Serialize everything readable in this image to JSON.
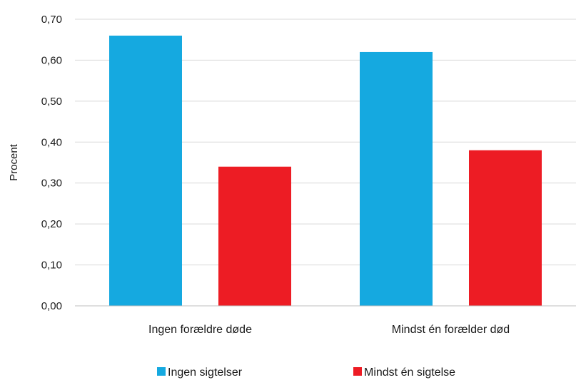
{
  "chart_data": {
    "type": "bar",
    "categories": [
      "Ingen forældre døde",
      "Mindst én forælder død"
    ],
    "series": [
      {
        "name": "Ingen sigtelser",
        "values": [
          0.66,
          0.62
        ],
        "color": "#15a9e0"
      },
      {
        "name": "Mindst én sigtelse",
        "values": [
          0.34,
          0.38
        ],
        "color": "#ed1c24"
      }
    ],
    "ylabel": "Procent",
    "ylim": [
      0,
      0.7
    ],
    "yticks": [
      "0,00",
      "0,10",
      "0,20",
      "0,30",
      "0,40",
      "0,50",
      "0,60",
      "0,70"
    ],
    "grid": true,
    "legend": "bottom"
  }
}
